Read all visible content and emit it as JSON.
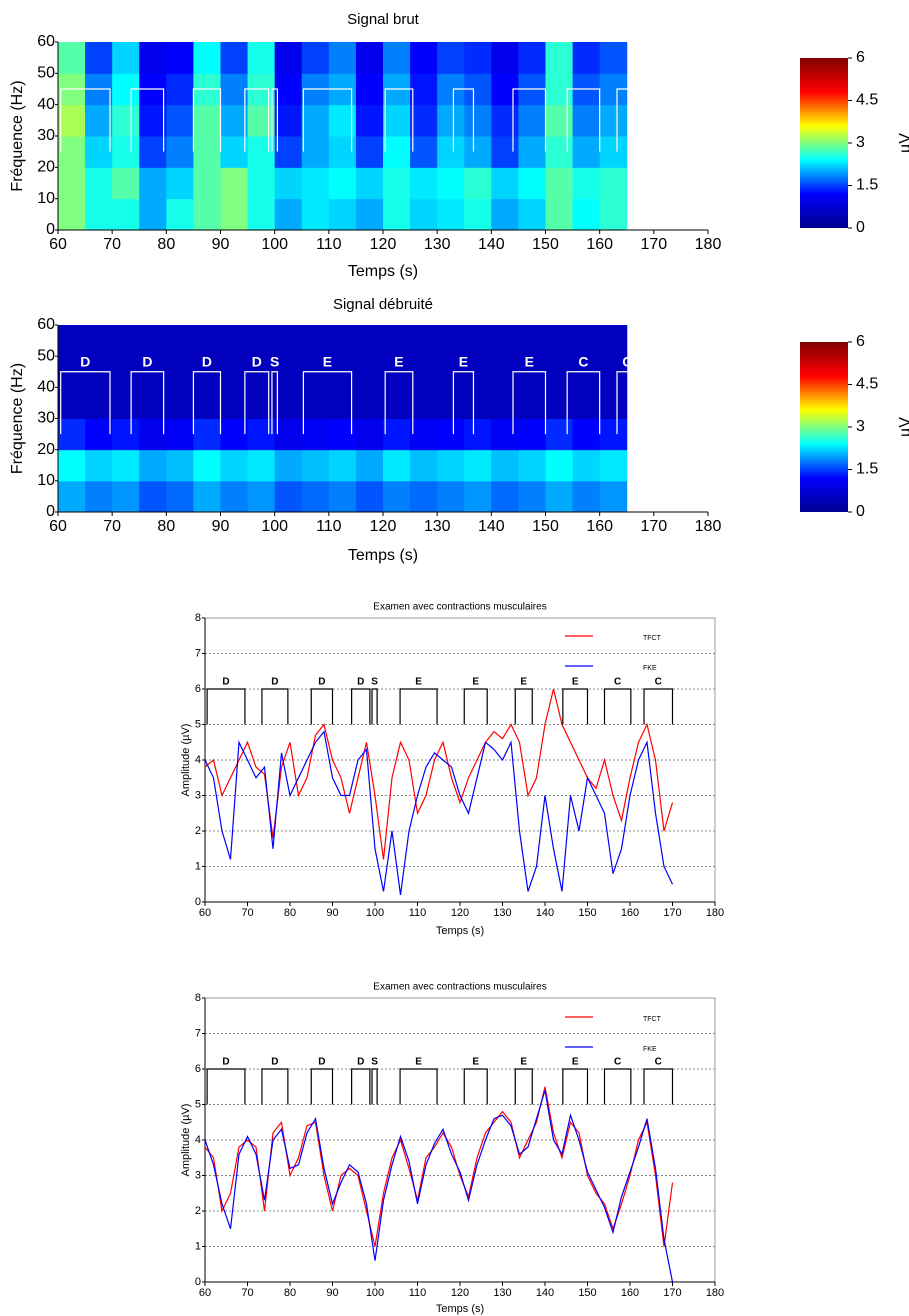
{
  "chart_data": [
    {
      "type": "heatmap",
      "title": "Signal brut",
      "xlabel": "Temps (s)",
      "ylabel": "Fréquence (Hz)",
      "xlim": [
        60,
        180
      ],
      "xticks": [
        60,
        70,
        80,
        90,
        100,
        110,
        120,
        130,
        140,
        150,
        160,
        170,
        180
      ],
      "ylim": [
        0,
        60
      ],
      "yticks": [
        0,
        10,
        20,
        30,
        40,
        50,
        60
      ],
      "time_bins": [
        60,
        65,
        70,
        75,
        80,
        85,
        90,
        95,
        100,
        105,
        110,
        115,
        120,
        125,
        130,
        135,
        140,
        145,
        150,
        155,
        160,
        165
      ],
      "freq_bins": [
        0,
        10,
        20,
        30,
        40,
        50,
        60
      ],
      "values": [
        [
          3,
          2.5,
          2.5,
          2,
          2.5,
          2.8,
          3,
          2.5,
          2,
          2.3,
          2.2,
          2,
          2.5,
          2.2,
          2.3,
          2.5,
          2,
          2.2,
          2.8,
          2.4,
          2.6
        ],
        [
          3,
          2.5,
          2.8,
          2,
          2.2,
          2.8,
          3,
          2.5,
          2.2,
          2.3,
          2.4,
          2.2,
          2.5,
          2.3,
          2.4,
          2.6,
          2.2,
          2.4,
          2.8,
          2.5,
          2.6
        ],
        [
          3,
          2.2,
          2.5,
          1.5,
          1.8,
          2.8,
          2.2,
          2.5,
          1.5,
          2,
          2.2,
          1.5,
          2.4,
          1.6,
          2.2,
          2,
          1.5,
          2,
          2.6,
          2,
          2.2
        ],
        [
          3.2,
          2,
          2.6,
          1.3,
          1.6,
          2.8,
          2,
          2.8,
          1.3,
          2,
          2.3,
          1.3,
          2.2,
          1.4,
          2,
          1.8,
          1.4,
          1.8,
          2.8,
          1.8,
          2
        ],
        [
          3,
          1.8,
          2.4,
          1.2,
          1.4,
          2.6,
          1.8,
          2.6,
          1.2,
          1.8,
          2,
          1.2,
          2,
          1.3,
          1.8,
          1.6,
          1.2,
          1.6,
          2.6,
          1.6,
          1.8
        ],
        [
          2.8,
          1.5,
          2.2,
          1,
          1.2,
          2.4,
          1.5,
          2.5,
          1,
          1.5,
          1.8,
          1,
          1.8,
          1.2,
          1.5,
          1.4,
          1,
          1.4,
          2.6,
          1.4,
          1.6
        ]
      ],
      "colormap": [
        "#00008f",
        "#0000ff",
        "#00ffff",
        "#ffff00",
        "#ff0000",
        "#800000"
      ],
      "clim": [
        0,
        6
      ],
      "cticks": [
        0,
        1.5,
        3,
        4.5,
        6
      ],
      "clabel": "µV",
      "segment_top": 45,
      "segment_bottom": 25,
      "segments": [
        {
          "start": 60.5,
          "end": 69.6
        },
        {
          "start": 73.5,
          "end": 79.5
        },
        {
          "start": 85,
          "end": 90
        },
        {
          "start": 94.5,
          "end": 98.9
        },
        {
          "start": 99.5,
          "end": 100.5
        },
        {
          "start": 105.3,
          "end": 114.2
        },
        {
          "start": 120.4,
          "end": 125.5
        },
        {
          "start": 133,
          "end": 136.7
        },
        {
          "start": 144,
          "end": 150
        },
        {
          "start": 154,
          "end": 160
        },
        {
          "start": 163.2,
          "end": 167
        }
      ]
    },
    {
      "type": "heatmap",
      "title": "Signal débruité",
      "xlabel": "Temps (s)",
      "ylabel": "Fréquence (Hz)",
      "xlim": [
        60,
        180
      ],
      "xticks": [
        60,
        70,
        80,
        90,
        100,
        110,
        120,
        130,
        140,
        150,
        160,
        170,
        180
      ],
      "ylim": [
        0,
        60
      ],
      "yticks": [
        0,
        10,
        20,
        30,
        40,
        50,
        60
      ],
      "time_bins": [
        60,
        65,
        70,
        75,
        80,
        85,
        90,
        95,
        100,
        105,
        110,
        115,
        120,
        125,
        130,
        135,
        140,
        145,
        150,
        155,
        160,
        165
      ],
      "freq_bins": [
        0,
        10,
        20,
        30,
        40,
        50,
        60
      ],
      "values": [
        [
          2,
          1.8,
          1.9,
          1.6,
          1.7,
          2,
          1.8,
          1.9,
          1.6,
          1.7,
          1.8,
          1.6,
          1.8,
          1.7,
          1.8,
          1.9,
          1.7,
          1.8,
          2,
          1.8,
          1.9
        ],
        [
          2.4,
          2.2,
          2.3,
          2,
          2.1,
          2.4,
          2.2,
          2.3,
          2,
          2.1,
          2.2,
          2,
          2.3,
          2.1,
          2.2,
          2.3,
          2.1,
          2.2,
          2.4,
          2.2,
          2.3
        ],
        [
          1.4,
          1.2,
          1.3,
          1,
          1.1,
          1.4,
          1.2,
          1.3,
          1,
          1.1,
          1.2,
          1,
          1.3,
          1.1,
          1.2,
          1.3,
          1.1,
          1.2,
          1.4,
          1.2,
          1.3
        ],
        [
          0.5,
          0.5,
          0.5,
          0.5,
          0.5,
          0.5,
          0.5,
          0.5,
          0.5,
          0.5,
          0.5,
          0.5,
          0.5,
          0.5,
          0.5,
          0.5,
          0.5,
          0.5,
          0.5,
          0.5,
          0.5
        ],
        [
          0.5,
          0.5,
          0.5,
          0.5,
          0.5,
          0.5,
          0.5,
          0.5,
          0.5,
          0.5,
          0.5,
          0.5,
          0.5,
          0.5,
          0.5,
          0.5,
          0.5,
          0.5,
          0.5,
          0.5,
          0.5
        ],
        [
          0.5,
          0.5,
          0.5,
          0.5,
          0.5,
          0.5,
          0.5,
          0.5,
          0.5,
          0.5,
          0.5,
          0.5,
          0.5,
          0.5,
          0.5,
          0.5,
          0.5,
          0.5,
          0.5,
          0.5,
          0.5
        ]
      ],
      "colormap": [
        "#00008f",
        "#0000ff",
        "#00ffff",
        "#ffff00",
        "#ff0000",
        "#800000"
      ],
      "clim": [
        0,
        6
      ],
      "cticks": [
        0,
        1.5,
        3,
        4.5,
        6
      ],
      "clabel": "µV",
      "segment_top": 45,
      "segment_bottom": 25,
      "segments": [
        {
          "label": "D",
          "start": 60.5,
          "end": 69.6
        },
        {
          "label": "D",
          "start": 73.5,
          "end": 79.5
        },
        {
          "label": "D",
          "start": 85,
          "end": 90
        },
        {
          "label": "D",
          "start": 94.5,
          "end": 98.9
        },
        {
          "label": "S",
          "start": 99.5,
          "end": 100.5
        },
        {
          "label": "E",
          "start": 105.3,
          "end": 114.2
        },
        {
          "label": "E",
          "start": 120.4,
          "end": 125.5
        },
        {
          "label": "E",
          "start": 133,
          "end": 136.7
        },
        {
          "label": "E",
          "start": 144,
          "end": 150
        },
        {
          "label": "C",
          "start": 154,
          "end": 160
        },
        {
          "label": "C",
          "start": 163.2,
          "end": 167
        }
      ]
    },
    {
      "type": "line",
      "title": "Examen avec contractions musculaires",
      "xlabel": "Temps (s)",
      "ylabel": "Amplitude (µV)",
      "xlim": [
        60,
        180
      ],
      "xticks": [
        60,
        70,
        80,
        90,
        100,
        110,
        120,
        130,
        140,
        150,
        160,
        170,
        180
      ],
      "ylim": [
        0,
        8
      ],
      "yticks": [
        0,
        1,
        2,
        3,
        4,
        5,
        6,
        7,
        8
      ],
      "grid": true,
      "x": [
        60,
        62,
        64,
        66,
        68,
        70,
        72,
        74,
        76,
        78,
        80,
        82,
        84,
        86,
        88,
        90,
        92,
        94,
        96,
        98,
        100,
        102,
        104,
        106,
        108,
        110,
        112,
        114,
        116,
        118,
        120,
        122,
        124,
        126,
        128,
        130,
        132,
        134,
        136,
        138,
        140,
        142,
        144,
        146,
        148,
        150,
        152,
        154,
        156,
        158,
        160,
        162,
        164,
        166,
        168,
        170
      ],
      "series": [
        {
          "name": "TFCT",
          "color": "#ff0000",
          "values": [
            3.8,
            4.0,
            3.0,
            3.5,
            4.0,
            4.5,
            3.8,
            3.6,
            1.8,
            3.8,
            4.5,
            3.0,
            3.5,
            4.7,
            5.0,
            4.0,
            3.5,
            2.5,
            3.5,
            4.5,
            3.0,
            1.2,
            3.5,
            4.5,
            4.0,
            2.5,
            3.0,
            4.0,
            4.5,
            3.5,
            2.8,
            3.5,
            4.0,
            4.5,
            4.8,
            4.6,
            5.0,
            4.5,
            3.0,
            3.5,
            5.0,
            6.0,
            5.0,
            4.5,
            4.0,
            3.5,
            3.2,
            4.0,
            3.0,
            2.3,
            3.5,
            4.5,
            5.0,
            4.0,
            2.0,
            2.8
          ]
        },
        {
          "name": "FKE",
          "color": "#0000ff",
          "values": [
            4.0,
            3.5,
            2.0,
            1.2,
            4.5,
            4.0,
            3.5,
            3.8,
            1.5,
            4.2,
            3.0,
            3.5,
            4.0,
            4.5,
            4.8,
            3.5,
            3.0,
            3.0,
            4.0,
            4.3,
            1.5,
            0.3,
            2.0,
            0.2,
            2.0,
            3.0,
            3.8,
            4.2,
            4.0,
            3.8,
            3.0,
            2.5,
            3.5,
            4.5,
            4.3,
            4.0,
            4.5,
            2.0,
            0.3,
            1.0,
            3.0,
            1.5,
            0.3,
            3.0,
            2.0,
            3.5,
            3.0,
            2.5,
            0.8,
            1.5,
            3.0,
            4.0,
            4.5,
            2.5,
            1.0,
            0.5
          ]
        }
      ],
      "segment_top": 6,
      "segment_bottom": 5,
      "segments": [
        {
          "label": "D",
          "start": 60.5,
          "end": 69.4
        },
        {
          "label": "D",
          "start": 73.4,
          "end": 79.5
        },
        {
          "label": "D",
          "start": 85,
          "end": 90
        },
        {
          "label": "D",
          "start": 94.5,
          "end": 98.8
        },
        {
          "label": "S",
          "start": 99.3,
          "end": 100.5
        },
        {
          "label": "E",
          "start": 105.9,
          "end": 114.6
        },
        {
          "label": "E",
          "start": 121,
          "end": 126.4
        },
        {
          "label": "E",
          "start": 133,
          "end": 137
        },
        {
          "label": "E",
          "start": 144.2,
          "end": 150
        },
        {
          "label": "C",
          "start": 154,
          "end": 160.2
        },
        {
          "label": "C",
          "start": 163.3,
          "end": 170
        }
      ]
    },
    {
      "type": "line",
      "title": "Examen avec contractions musculaires",
      "xlabel": "Temps (s)",
      "ylabel": "Amplitude (µV)",
      "xlim": [
        60,
        180
      ],
      "xticks": [
        60,
        70,
        80,
        90,
        100,
        110,
        120,
        130,
        140,
        150,
        160,
        170,
        180
      ],
      "ylim": [
        0,
        8
      ],
      "yticks": [
        0,
        1,
        2,
        3,
        4,
        5,
        6,
        7,
        8
      ],
      "grid": true,
      "x": [
        60,
        62,
        64,
        66,
        68,
        70,
        72,
        74,
        76,
        78,
        80,
        82,
        84,
        86,
        88,
        90,
        92,
        94,
        96,
        98,
        100,
        102,
        104,
        106,
        108,
        110,
        112,
        114,
        116,
        118,
        120,
        122,
        124,
        126,
        128,
        130,
        132,
        134,
        136,
        138,
        140,
        142,
        144,
        146,
        148,
        150,
        152,
        154,
        156,
        158,
        160,
        162,
        164,
        166,
        168,
        170
      ],
      "series": [
        {
          "name": "TFCT",
          "color": "#ff0000",
          "values": [
            3.8,
            3.5,
            2.0,
            2.5,
            3.8,
            4.0,
            3.8,
            2.0,
            4.2,
            4.5,
            3.0,
            3.5,
            4.4,
            4.5,
            3.0,
            2.0,
            3.0,
            3.2,
            3.0,
            2.0,
            1.0,
            2.5,
            3.5,
            4.0,
            3.2,
            2.3,
            3.5,
            3.8,
            4.2,
            3.8,
            3.0,
            2.4,
            3.5,
            4.2,
            4.5,
            4.8,
            4.5,
            3.5,
            4.0,
            4.5,
            5.5,
            4.2,
            3.5,
            4.5,
            4.2,
            3.0,
            2.5,
            2.2,
            1.5,
            2.2,
            3.0,
            4.0,
            4.5,
            3.0,
            1.0,
            2.8
          ]
        },
        {
          "name": "FKE",
          "color": "#0000ff",
          "values": [
            4.0,
            3.3,
            2.2,
            1.5,
            3.6,
            4.1,
            3.6,
            2.3,
            4.0,
            4.3,
            3.2,
            3.3,
            4.2,
            4.6,
            3.2,
            2.2,
            2.8,
            3.3,
            3.1,
            2.2,
            0.6,
            2.3,
            3.3,
            4.1,
            3.4,
            2.2,
            3.3,
            3.9,
            4.3,
            3.6,
            3.1,
            2.3,
            3.3,
            4.0,
            4.6,
            4.7,
            4.4,
            3.6,
            3.8,
            4.6,
            5.4,
            4.0,
            3.6,
            4.7,
            4.0,
            3.1,
            2.6,
            2.1,
            1.4,
            2.4,
            3.1,
            3.8,
            4.6,
            3.2,
            1.2,
            0
          ]
        }
      ],
      "segment_top": 6,
      "segment_bottom": 5,
      "segments": [
        {
          "label": "D",
          "start": 60.5,
          "end": 69.4
        },
        {
          "label": "D",
          "start": 73.4,
          "end": 79.5
        },
        {
          "label": "D",
          "start": 85,
          "end": 90
        },
        {
          "label": "D",
          "start": 94.5,
          "end": 98.8
        },
        {
          "label": "S",
          "start": 99.3,
          "end": 100.5
        },
        {
          "label": "E",
          "start": 105.9,
          "end": 114.6
        },
        {
          "label": "E",
          "start": 121,
          "end": 126.4
        },
        {
          "label": "E",
          "start": 133,
          "end": 137
        },
        {
          "label": "E",
          "start": 144.2,
          "end": 150
        },
        {
          "label": "C",
          "start": 154,
          "end": 160.2
        },
        {
          "label": "C",
          "start": 163.3,
          "end": 170
        }
      ]
    }
  ]
}
